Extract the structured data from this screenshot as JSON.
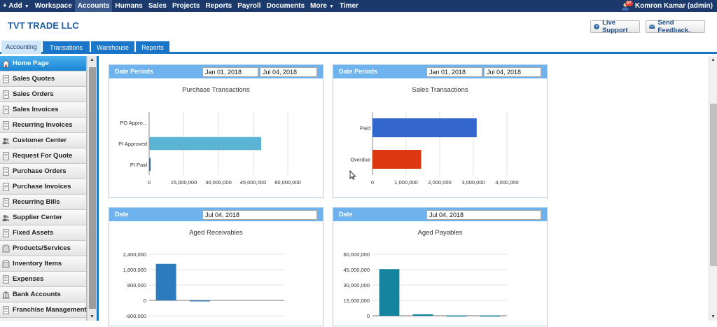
{
  "topnav": {
    "items": [
      {
        "label": "+ Add",
        "caret": true
      },
      {
        "label": "Workspace",
        "caret": false
      },
      {
        "label": "Accounts",
        "caret": false,
        "active": true
      },
      {
        "label": "Humans",
        "caret": false
      },
      {
        "label": "Sales",
        "caret": false
      },
      {
        "label": "Projects",
        "caret": false
      },
      {
        "label": "Reports",
        "caret": false
      },
      {
        "label": "Payroll",
        "caret": false
      },
      {
        "label": "Documents",
        "caret": false
      },
      {
        "label": "More",
        "caret": true
      },
      {
        "label": "Timer",
        "caret": false
      }
    ],
    "notification_count": "87",
    "user_name": "Komron Kamar (admin)"
  },
  "header": {
    "company": "TVT TRADE LLC",
    "live_support": "Live Support",
    "send_feedback": "Send Feedback."
  },
  "tabs": [
    {
      "label": "Accounting",
      "active": true
    },
    {
      "label": "Transations",
      "active": false
    },
    {
      "label": "Warehouse",
      "active": false
    },
    {
      "label": "Reports",
      "active": false
    }
  ],
  "sidebar": {
    "items": [
      {
        "label": "Home Page",
        "icon": "home-icon",
        "active": true
      },
      {
        "label": "Sales Quotes",
        "icon": "document-icon"
      },
      {
        "label": "Sales Orders",
        "icon": "document-icon"
      },
      {
        "label": "Sales Invoices",
        "icon": "document-icon"
      },
      {
        "label": "Recurring Invoices",
        "icon": "document-icon"
      },
      {
        "label": "Customer Center",
        "icon": "people-icon"
      },
      {
        "label": "Request For Quote",
        "icon": "document-icon"
      },
      {
        "label": "Purchase Orders",
        "icon": "document-icon"
      },
      {
        "label": "Purchase Invoices",
        "icon": "document-icon"
      },
      {
        "label": "Recurring Bills",
        "icon": "document-icon"
      },
      {
        "label": "Supplier Center",
        "icon": "people-icon"
      },
      {
        "label": "Fixed Assets",
        "icon": "document-icon"
      },
      {
        "label": "Products/Services",
        "icon": "box-icon"
      },
      {
        "label": "Inventory Items",
        "icon": "box-icon"
      },
      {
        "label": "Expenses",
        "icon": "document-icon"
      },
      {
        "label": "Bank Accounts",
        "icon": "bank-icon"
      },
      {
        "label": "Franchise Management",
        "icon": "document-icon"
      }
    ]
  },
  "panels": {
    "purchase": {
      "head_label": "Date Periods",
      "date_from": "Jan 01, 2018",
      "date_to": "Jul 04, 2018",
      "title": "Purchase Transactions"
    },
    "sales": {
      "head_label": "Date Periods",
      "date_from": "Jan 01, 2018",
      "date_to": "Jul 04, 2018",
      "title": "Sales Transactions"
    },
    "receivables": {
      "head_label": "Date",
      "date": "Jul 04, 2018",
      "title": "Aged Receivables"
    },
    "payables": {
      "head_label": "Date",
      "date": "Jul 04, 2018",
      "title": "Aged Payables"
    }
  },
  "colors": {
    "nav_bg": "#1b3a6b",
    "tab_blue": "#1b75c9",
    "panel_head": "#6fb3ee",
    "purchase_bar": "#5bb4d3",
    "purchase_bar_small": "#2f6fb5",
    "sales_paid": "#3366cc",
    "sales_overdue": "#dc3912",
    "receivables_bar": "#2c7bbf",
    "payables_bar": "#16849e"
  },
  "chart_data": [
    {
      "type": "bar",
      "orientation": "horizontal",
      "title": "Purchase Transactions",
      "categories": [
        "PO Appro...",
        "PI Approved",
        "PI Paid"
      ],
      "values": [
        0,
        48500000,
        400000
      ],
      "x_ticks": [
        "0",
        "15,000,000",
        "30,000,000",
        "45,000,000",
        "60,000,000"
      ],
      "xlim": [
        0,
        60000000
      ],
      "grid": true
    },
    {
      "type": "bar",
      "orientation": "horizontal",
      "title": "Sales Transactions",
      "categories": [
        "Paid",
        "Overdue"
      ],
      "values": [
        3100000,
        1450000
      ],
      "x_ticks": [
        "0",
        "1,000,000",
        "2,000,000",
        "3,000,000",
        "4,000,000"
      ],
      "xlim": [
        0,
        4000000
      ],
      "grid": true
    },
    {
      "type": "bar",
      "orientation": "vertical",
      "title": "Aged Receivables",
      "values": [
        1900000,
        -40000,
        0,
        0
      ],
      "y_ticks": [
        "2,400,000",
        "1,600,000",
        "800,000",
        "0",
        "-800,000"
      ],
      "ylim": [
        -800000,
        2400000
      ],
      "grid": true
    },
    {
      "type": "bar",
      "orientation": "vertical",
      "title": "Aged Payables",
      "values": [
        45500000,
        1500000,
        300000,
        300000
      ],
      "y_ticks": [
        "60,000,000",
        "45,000,000",
        "30,000,000",
        "15,000,000",
        "0"
      ],
      "ylim": [
        0,
        60000000
      ],
      "grid": true
    }
  ]
}
